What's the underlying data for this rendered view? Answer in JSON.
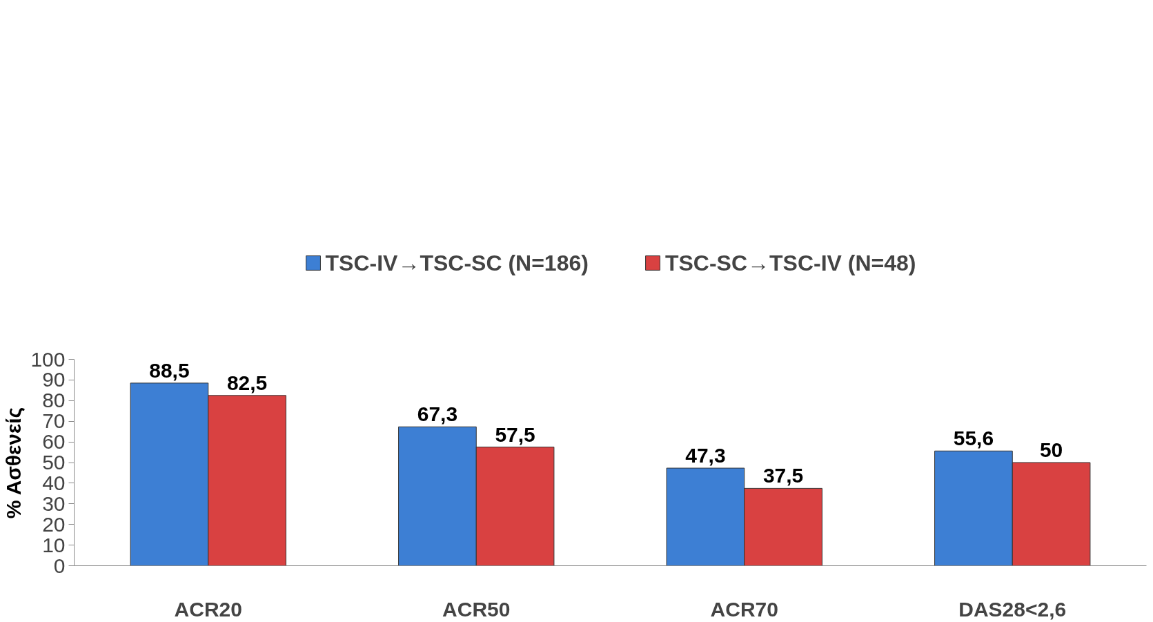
{
  "chart_data": {
    "type": "bar",
    "ylabel": "% Ασθενείς",
    "categories": [
      "ACR20",
      "ACR50",
      "ACR70",
      "DAS28<2,6"
    ],
    "series": [
      {
        "name": "TSC-IV→TSC-SC (N=186)",
        "color": "#3d7fd4",
        "values": [
          88.5,
          67.3,
          47.3,
          55.6
        ],
        "value_labels": [
          "88,5",
          "67,3",
          "47,3",
          "55,6"
        ]
      },
      {
        "name": "TSC-SC→TSC-IV (N=48)",
        "color": "#d94141",
        "values": [
          82.5,
          57.5,
          37.5,
          50
        ],
        "value_labels": [
          "82,5",
          "57,5",
          "37,5",
          "50"
        ]
      }
    ],
    "ylim": [
      0,
      100
    ],
    "yticks": [
      0,
      10,
      20,
      30,
      40,
      50,
      60,
      70,
      80,
      90,
      100
    ],
    "grid": false,
    "legend": "top"
  }
}
